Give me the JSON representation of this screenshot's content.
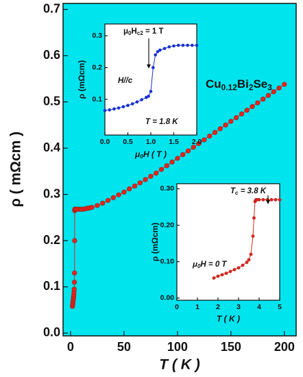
{
  "chart_data": [
    {
      "type": "line",
      "markers": true,
      "color": "#e3241b",
      "background": "#00e4ee",
      "xlabel": "T ( K )",
      "ylabel": "ρ ( mΩcm )",
      "annotations": [
        [
          "Cu",
          "0.12",
          "Bi",
          "2",
          "Se",
          "3"
        ]
      ],
      "xlim": [
        -7,
        211
      ],
      "ylim": [
        -0.006,
        0.713
      ],
      "xticks": [
        0,
        50,
        100,
        150,
        200
      ],
      "yticks": [
        {
          "value": 0,
          "label": "0.0"
        },
        0.1,
        0.2,
        0.3,
        0.4,
        0.5,
        0.6,
        0.7
      ],
      "x": [
        1.8,
        2,
        2.2,
        2.4,
        2.6,
        2.8,
        3,
        3.2,
        3.4,
        3.6,
        3.7,
        3.8,
        3.9,
        4,
        5,
        6,
        8,
        10,
        12,
        14,
        16,
        18,
        20,
        25,
        30,
        35,
        40,
        45,
        50,
        55,
        60,
        65,
        70,
        75,
        80,
        85,
        90,
        95,
        100,
        105,
        110,
        115,
        120,
        125,
        130,
        135,
        140,
        145,
        150,
        155,
        160,
        165,
        170,
        175,
        180,
        185,
        190,
        195,
        200
      ],
      "values": [
        0.058,
        0.062,
        0.066,
        0.07,
        0.074,
        0.078,
        0.082,
        0.088,
        0.095,
        0.11,
        0.13,
        0.2,
        0.265,
        0.268,
        0.268,
        0.268,
        0.268,
        0.268,
        0.268,
        0.269,
        0.27,
        0.271,
        0.272,
        0.276,
        0.281,
        0.287,
        0.293,
        0.299,
        0.305,
        0.312,
        0.318,
        0.325,
        0.332,
        0.339,
        0.346,
        0.354,
        0.362,
        0.37,
        0.378,
        0.386,
        0.394,
        0.402,
        0.41,
        0.418,
        0.426,
        0.434,
        0.442,
        0.45,
        0.458,
        0.466,
        0.474,
        0.482,
        0.49,
        0.498,
        0.506,
        0.514,
        0.522,
        0.53,
        0.538
      ]
    },
    {
      "type": "line",
      "markers": true,
      "color": "#1632d2",
      "background": "#ffffff",
      "xlabel": [
        "μ",
        "0",
        "H ( T )"
      ],
      "ylabel": "ρ (mΩcm)",
      "annotations": [
        [
          "μ",
          "0",
          "H",
          "c2",
          " = 1 T"
        ],
        "H//c",
        "T = 1.8 K"
      ],
      "xlim": [
        0,
        2
      ],
      "ylim": [
        -0.012,
        0.337
      ],
      "xticks": [
        {
          "value": 0,
          "label": "0.0"
        },
        {
          "value": 0.5,
          "label": "0.5"
        },
        {
          "value": 1,
          "label": "1.0"
        },
        {
          "value": 1.5,
          "label": "1.5"
        },
        {
          "value": 2,
          "label": "2.0"
        }
      ],
      "yticks": [
        0.1,
        0.2,
        0.3
      ],
      "x": [
        0,
        0.1,
        0.2,
        0.3,
        0.4,
        0.5,
        0.6,
        0.7,
        0.8,
        0.9,
        0.95,
        1.0,
        1.05,
        1.1,
        1.15,
        1.2,
        1.3,
        1.4,
        1.5,
        1.6,
        1.7,
        1.8,
        1.9,
        2.0
      ],
      "values": [
        0.065,
        0.067,
        0.07,
        0.073,
        0.077,
        0.081,
        0.086,
        0.092,
        0.099,
        0.106,
        0.11,
        0.125,
        0.2,
        0.24,
        0.25,
        0.255,
        0.26,
        0.265,
        0.268,
        0.27,
        0.27,
        0.27,
        0.27,
        0.27
      ]
    },
    {
      "type": "line",
      "markers": true,
      "color": "#e3241b",
      "background": "#ffffff",
      "xlabel": "T ( K )",
      "ylabel": "ρ (mΩcm)",
      "annotations": [
        [
          "T",
          "c",
          " = 3.8 K"
        ],
        [
          "μ",
          "0",
          "H = 0 T"
        ]
      ],
      "xlim": [
        0,
        5
      ],
      "ylim": [
        -0.006,
        0.314
      ],
      "xticks": [
        0,
        1,
        2,
        3,
        4,
        5
      ],
      "yticks": [
        {
          "value": 0,
          "label": "0.00"
        },
        {
          "value": 0.1,
          "label": "0.10"
        },
        {
          "value": 0.2,
          "label": "0.20"
        },
        {
          "value": 0.3,
          "label": "0.30"
        }
      ],
      "x": [
        1.8,
        2,
        2.2,
        2.4,
        2.6,
        2.8,
        3,
        3.2,
        3.4,
        3.5,
        3.6,
        3.7,
        3.75,
        3.8,
        3.85,
        3.9,
        4,
        4.2,
        4.4,
        4.6,
        4.8,
        5
      ],
      "values": [
        0.055,
        0.06,
        0.064,
        0.068,
        0.073,
        0.078,
        0.083,
        0.09,
        0.098,
        0.105,
        0.12,
        0.17,
        0.22,
        0.265,
        0.27,
        0.27,
        0.27,
        0.27,
        0.27,
        0.27,
        0.27,
        0.27
      ]
    }
  ]
}
